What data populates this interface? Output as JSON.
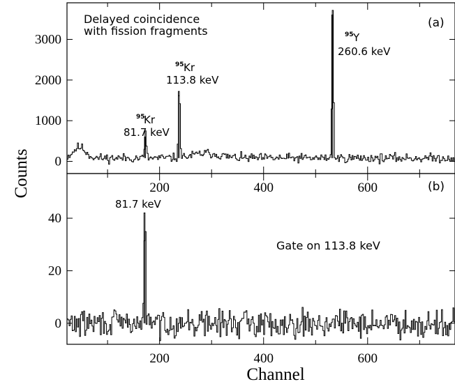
{
  "chart_data": [
    {
      "panel": "(a)",
      "type": "line",
      "title": "",
      "xlabel": "",
      "ylabel": "",
      "xlim": [
        22,
        768
      ],
      "ylim": [
        -300,
        3900
      ],
      "yticks": [
        0,
        1000,
        2000,
        3000
      ],
      "xticks": [
        200,
        400,
        600
      ],
      "baseline": 80,
      "noise": 55,
      "peaks": [
        {
          "x": 172,
          "y": 600,
          "width": 1.6
        },
        {
          "x": 237,
          "y": 1720,
          "width": 1.6
        },
        {
          "x": 532,
          "y": 3600,
          "width": 1.4
        }
      ],
      "bumps": [
        {
          "x": 45,
          "y": 270,
          "width": 12
        },
        {
          "x": 290,
          "y": 120,
          "width": 25
        }
      ],
      "annotations": [
        {
          "line1": "Delayed coincidence",
          "line2": "with fission fragments"
        },
        {
          "sup": "95",
          "nuclide": "Kr",
          "energy": "81.7 keV"
        },
        {
          "sup": "95",
          "nuclide": "Kr",
          "energy": "113.8 keV"
        },
        {
          "sup": "95",
          "nuclide": "Y",
          "energy": "260.6 keV"
        }
      ]
    },
    {
      "panel": "(b)",
      "type": "line",
      "title": "",
      "xlabel": "Channel",
      "ylabel": "Counts",
      "xlim": [
        22,
        768
      ],
      "ylim": [
        -8,
        57
      ],
      "yticks": [
        0,
        20,
        40
      ],
      "xticks": [
        200,
        400,
        600
      ],
      "baseline": 0,
      "noise": 2.5,
      "peaks": [
        {
          "x": 171,
          "y": 42,
          "width": 1.4
        }
      ],
      "bumps": [],
      "annotations": [
        {
          "energy": "81.7 keV"
        },
        {
          "text": "Gate on 113.8 keV"
        }
      ]
    }
  ],
  "shared": {
    "ylabel": "Counts",
    "xlabel": "Channel"
  }
}
